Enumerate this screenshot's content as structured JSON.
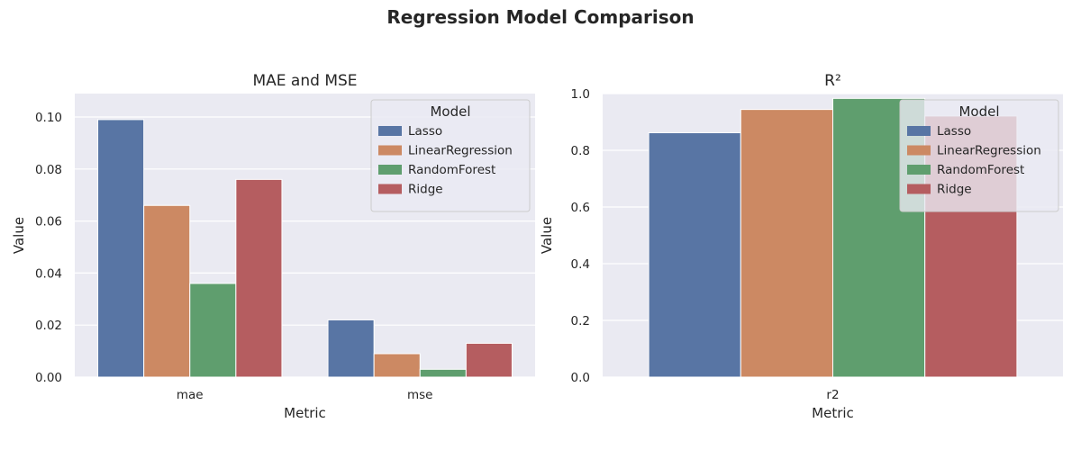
{
  "figure": {
    "title": "Regression Model Comparison"
  },
  "chart_data": [
    {
      "type": "bar",
      "title": "MAE and MSE",
      "xlabel": "Metric",
      "ylabel": "Value",
      "categories": [
        "mae",
        "mse"
      ],
      "ylim": [
        0,
        0.109
      ],
      "yticks": [
        0.0,
        0.02,
        0.04,
        0.06,
        0.08,
        0.1
      ],
      "ytick_labels": [
        "0.00",
        "0.02",
        "0.04",
        "0.06",
        "0.08",
        "0.10"
      ],
      "grid": true,
      "legend": {
        "title": "Model",
        "placement": "top-right"
      },
      "series": [
        {
          "name": "Lasso",
          "color": "#5875a4",
          "values": [
            0.099,
            0.022
          ]
        },
        {
          "name": "LinearRegression",
          "color": "#cc8963",
          "values": [
            0.066,
            0.009
          ]
        },
        {
          "name": "RandomForest",
          "color": "#5f9e6e",
          "values": [
            0.036,
            0.003
          ]
        },
        {
          "name": "Ridge",
          "color": "#b55d60",
          "values": [
            0.076,
            0.013
          ]
        }
      ]
    },
    {
      "type": "bar",
      "title": "R²",
      "xlabel": "Metric",
      "ylabel": "Value",
      "categories": [
        "r2"
      ],
      "ylim": [
        0,
        1.0
      ],
      "yticks": [
        0.0,
        0.2,
        0.4,
        0.6,
        0.8,
        1.0
      ],
      "ytick_labels": [
        "0.0",
        "0.2",
        "0.4",
        "0.6",
        "0.8",
        "1.0"
      ],
      "grid": true,
      "legend": {
        "title": "Model",
        "placement": "top-right"
      },
      "series": [
        {
          "name": "Lasso",
          "color": "#5875a4",
          "values": [
            0.862
          ]
        },
        {
          "name": "LinearRegression",
          "color": "#cc8963",
          "values": [
            0.944
          ]
        },
        {
          "name": "RandomForest",
          "color": "#5f9e6e",
          "values": [
            0.983
          ]
        },
        {
          "name": "Ridge",
          "color": "#b55d60",
          "values": [
            0.921
          ]
        }
      ]
    }
  ]
}
